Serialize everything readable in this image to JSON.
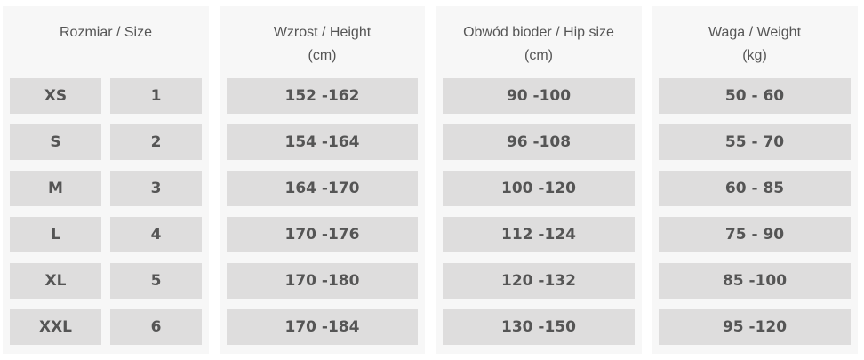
{
  "columns": {
    "size": {
      "header": "Rozmiar / Size"
    },
    "height": {
      "header": "Wzrost / Height",
      "unit": "(cm)"
    },
    "hip": {
      "header": "Obwód bioder  / Hip size",
      "unit": "(cm)"
    },
    "weight": {
      "header": "Waga  / Weight",
      "unit": "(kg)"
    }
  },
  "rows": [
    {
      "size": "XS",
      "number": "1",
      "height": "152 -162",
      "hip": "90 -100",
      "weight": "50 - 60"
    },
    {
      "size": "S",
      "number": "2",
      "height": "154 -164",
      "hip": "96 -108",
      "weight": "55 - 70"
    },
    {
      "size": "M",
      "number": "3",
      "height": "164 -170",
      "hip": "100 -120",
      "weight": "60 - 85"
    },
    {
      "size": "L",
      "number": "4",
      "height": "170 -176",
      "hip": "112 -124",
      "weight": "75 - 90"
    },
    {
      "size": "XL",
      "number": "5",
      "height": "170 -180",
      "hip": "120 -132",
      "weight": "85 -100"
    },
    {
      "size": "XXL",
      "number": "6",
      "height": "170 -184",
      "hip": "130 -150",
      "weight": "95 -120"
    }
  ]
}
